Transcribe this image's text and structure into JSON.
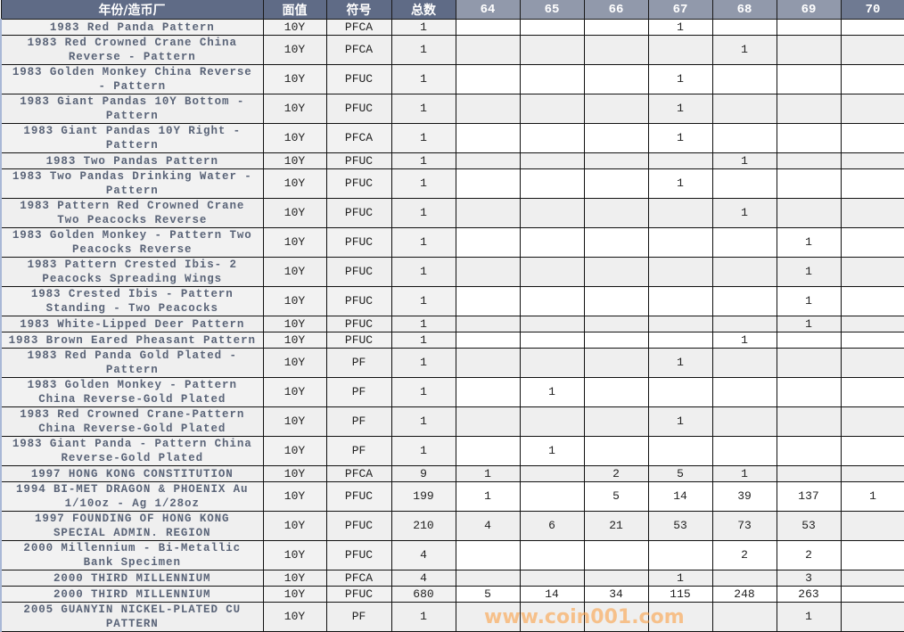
{
  "header": {
    "name": "年份/造币厂",
    "denomination": "面值",
    "designation": "符号",
    "total": "总数",
    "grades": [
      "64",
      "65",
      "66",
      "67",
      "68",
      "69",
      "70"
    ]
  },
  "rows": [
    {
      "name": "1983 Red Panda Pattern",
      "denomination": "10Y",
      "designation": "PFCA",
      "total": "1",
      "grades": [
        "",
        "",
        "",
        "1",
        "",
        "",
        ""
      ]
    },
    {
      "name": "1983 Red Crowned Crane China Reverse - Pattern",
      "denomination": "10Y",
      "designation": "PFCA",
      "total": "1",
      "grades": [
        "",
        "",
        "",
        "",
        "1",
        "",
        ""
      ]
    },
    {
      "name": "1983 Golden Monkey China Reverse - Pattern",
      "denomination": "10Y",
      "designation": "PFUC",
      "total": "1",
      "grades": [
        "",
        "",
        "",
        "1",
        "",
        "",
        ""
      ]
    },
    {
      "name": "1983 Giant Pandas 10Y Bottom - Pattern",
      "denomination": "10Y",
      "designation": "PFUC",
      "total": "1",
      "grades": [
        "",
        "",
        "",
        "1",
        "",
        "",
        ""
      ]
    },
    {
      "name": "1983 Giant Pandas 10Y Right - Pattern",
      "denomination": "10Y",
      "designation": "PFCA",
      "total": "1",
      "grades": [
        "",
        "",
        "",
        "1",
        "",
        "",
        ""
      ]
    },
    {
      "name": "1983 Two Pandas Pattern",
      "denomination": "10Y",
      "designation": "PFUC",
      "total": "1",
      "grades": [
        "",
        "",
        "",
        "",
        "1",
        "",
        ""
      ]
    },
    {
      "name": "1983 Two Pandas Drinking Water - Pattern",
      "denomination": "10Y",
      "designation": "PFUC",
      "total": "1",
      "grades": [
        "",
        "",
        "",
        "1",
        "",
        "",
        ""
      ]
    },
    {
      "name": "1983 Pattern Red Crowned Crane Two Peacocks Reverse",
      "denomination": "10Y",
      "designation": "PFUC",
      "total": "1",
      "grades": [
        "",
        "",
        "",
        "",
        "1",
        "",
        ""
      ]
    },
    {
      "name": "1983 Golden Monkey - Pattern Two Peacocks Reverse",
      "denomination": "10Y",
      "designation": "PFUC",
      "total": "1",
      "grades": [
        "",
        "",
        "",
        "",
        "",
        "1",
        ""
      ]
    },
    {
      "name": "1983 Pattern Crested Ibis- 2 Peacocks Spreading Wings",
      "denomination": "10Y",
      "designation": "PFUC",
      "total": "1",
      "grades": [
        "",
        "",
        "",
        "",
        "",
        "1",
        ""
      ]
    },
    {
      "name": "1983 Crested Ibis - Pattern Standing - Two Peacocks",
      "denomination": "10Y",
      "designation": "PFUC",
      "total": "1",
      "grades": [
        "",
        "",
        "",
        "",
        "",
        "1",
        ""
      ]
    },
    {
      "name": "1983 White-Lipped Deer Pattern",
      "denomination": "10Y",
      "designation": "PFUC",
      "total": "1",
      "grades": [
        "",
        "",
        "",
        "",
        "",
        "1",
        ""
      ]
    },
    {
      "name": "1983 Brown Eared Pheasant Pattern",
      "denomination": "10Y",
      "designation": "PFUC",
      "total": "1",
      "grades": [
        "",
        "",
        "",
        "",
        "1",
        "",
        ""
      ]
    },
    {
      "name": "1983 Red Panda Gold Plated - Pattern",
      "denomination": "10Y",
      "designation": "PF",
      "total": "1",
      "grades": [
        "",
        "",
        "",
        "1",
        "",
        "",
        ""
      ]
    },
    {
      "name": "1983 Golden Monkey - Pattern China Reverse-Gold Plated",
      "denomination": "10Y",
      "designation": "PF",
      "total": "1",
      "grades": [
        "",
        "1",
        "",
        "",
        "",
        "",
        ""
      ]
    },
    {
      "name": "1983 Red Crowned Crane-Pattern China Reverse-Gold Plated",
      "denomination": "10Y",
      "designation": "PF",
      "total": "1",
      "grades": [
        "",
        "",
        "",
        "1",
        "",
        "",
        ""
      ]
    },
    {
      "name": "1983 Giant Panda - Pattern China Reverse-Gold Plated",
      "denomination": "10Y",
      "designation": "PF",
      "total": "1",
      "grades": [
        "",
        "1",
        "",
        "",
        "",
        "",
        ""
      ]
    },
    {
      "name": "1997 HONG KONG CONSTITUTION",
      "denomination": "10Y",
      "designation": "PFCA",
      "total": "9",
      "grades": [
        "1",
        "",
        "2",
        "5",
        "1",
        "",
        ""
      ]
    },
    {
      "name": "1994 BI-MET DRAGON & PHOENIX Au 1/10oz - Ag 1/28oz",
      "denomination": "10Y",
      "designation": "PFUC",
      "total": "199",
      "grades": [
        "1",
        "",
        "5",
        "14",
        "39",
        "137",
        "1"
      ]
    },
    {
      "name": "1997 FOUNDING OF HONG KONG SPECIAL ADMIN. REGION",
      "denomination": "10Y",
      "designation": "PFUC",
      "total": "210",
      "grades": [
        "4",
        "6",
        "21",
        "53",
        "73",
        "53",
        ""
      ]
    },
    {
      "name": "2000 Millennium - Bi-Metallic Bank Specimen",
      "denomination": "10Y",
      "designation": "PFUC",
      "total": "4",
      "grades": [
        "",
        "",
        "",
        "",
        "2",
        "2",
        ""
      ]
    },
    {
      "name": "2000 THIRD MILLENNIUM",
      "denomination": "10Y",
      "designation": "PFCA",
      "total": "4",
      "grades": [
        "",
        "",
        "",
        "1",
        "",
        "3",
        ""
      ]
    },
    {
      "name": "2000 THIRD MILLENNIUM",
      "denomination": "10Y",
      "designation": "PFUC",
      "total": "680",
      "grades": [
        "5",
        "14",
        "34",
        "115",
        "248",
        "263",
        ""
      ]
    },
    {
      "name": "2005 GUANYIN NICKEL-PLATED CU PATTERN",
      "denomination": "10Y",
      "designation": "PF",
      "total": "1",
      "grades": [
        "",
        "",
        "",
        "",
        "",
        "1",
        ""
      ]
    }
  ],
  "watermark": "www.coin001.com",
  "colors": {
    "header": "#5f6b86",
    "header_grades": "#9199ab",
    "name_text": "#5a6478",
    "watermark": "#faa046"
  }
}
